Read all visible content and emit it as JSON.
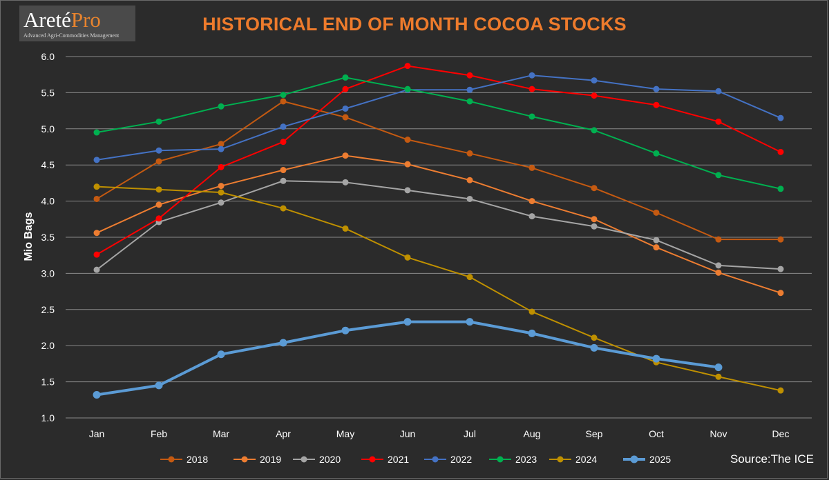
{
  "logo": {
    "brand_main": "Areté",
    "brand_accent": "Pro",
    "tagline": "Advanced Agri-Commodities Management"
  },
  "source_note": "Source:The ICE",
  "colors": {
    "background": "#2b2b2b",
    "title": "#ee7b2c",
    "grid": "#8a8a8a",
    "text": "#ffffff"
  },
  "chart_data": {
    "type": "line",
    "title": "HISTORICAL END OF MONTH COCOA STOCKS",
    "xlabel": "",
    "ylabel": "Mio Bags",
    "ylim": [
      1.0,
      6.0
    ],
    "yticks": [
      "1.0",
      "1.5",
      "2.0",
      "2.5",
      "3.0",
      "3.5",
      "4.0",
      "4.5",
      "5.0",
      "5.5",
      "6.0"
    ],
    "grid": true,
    "legend_position": "bottom",
    "categories": [
      "Jan",
      "Feb",
      "Mar",
      "Apr",
      "May",
      "Jun",
      "Jul",
      "Aug",
      "Sep",
      "Oct",
      "Nov",
      "Dec"
    ],
    "series": [
      {
        "name": "2018",
        "color": "#c55a11",
        "values": [
          4.03,
          4.55,
          4.79,
          5.38,
          5.16,
          4.85,
          4.66,
          4.46,
          4.18,
          3.84,
          3.47,
          3.47
        ]
      },
      {
        "name": "2019",
        "color": "#ed7d31",
        "values": [
          3.56,
          3.95,
          4.21,
          4.43,
          4.63,
          4.51,
          4.29,
          4.0,
          3.75,
          3.36,
          3.01,
          2.73
        ]
      },
      {
        "name": "2020",
        "color": "#a5a5a5",
        "values": [
          3.05,
          3.71,
          3.98,
          4.28,
          4.26,
          4.15,
          4.03,
          3.79,
          3.65,
          3.46,
          3.11,
          3.06
        ]
      },
      {
        "name": "2021",
        "color": "#ff0000",
        "values": [
          3.26,
          3.76,
          4.47,
          4.82,
          5.55,
          5.87,
          5.74,
          5.55,
          5.46,
          5.33,
          5.1,
          4.68
        ]
      },
      {
        "name": "2022",
        "color": "#4472c4",
        "values": [
          4.57,
          4.7,
          4.72,
          5.03,
          5.28,
          5.54,
          5.54,
          5.74,
          5.67,
          5.55,
          5.52,
          5.15
        ]
      },
      {
        "name": "2023",
        "color": "#00b050",
        "values": [
          4.95,
          5.1,
          5.31,
          5.47,
          5.71,
          5.55,
          5.38,
          5.17,
          4.98,
          4.66,
          4.36,
          4.17
        ]
      },
      {
        "name": "2024",
        "color": "#bf9000",
        "values": [
          4.2,
          4.16,
          4.12,
          3.9,
          3.62,
          3.22,
          2.95,
          2.47,
          2.11,
          1.77,
          1.57,
          1.38
        ]
      },
      {
        "name": "2025",
        "color": "#5b9bd5",
        "values": [
          1.32,
          1.45,
          1.88,
          2.04,
          2.21,
          2.33,
          2.33,
          2.17,
          1.97,
          1.82,
          1.7,
          null
        ]
      }
    ]
  }
}
